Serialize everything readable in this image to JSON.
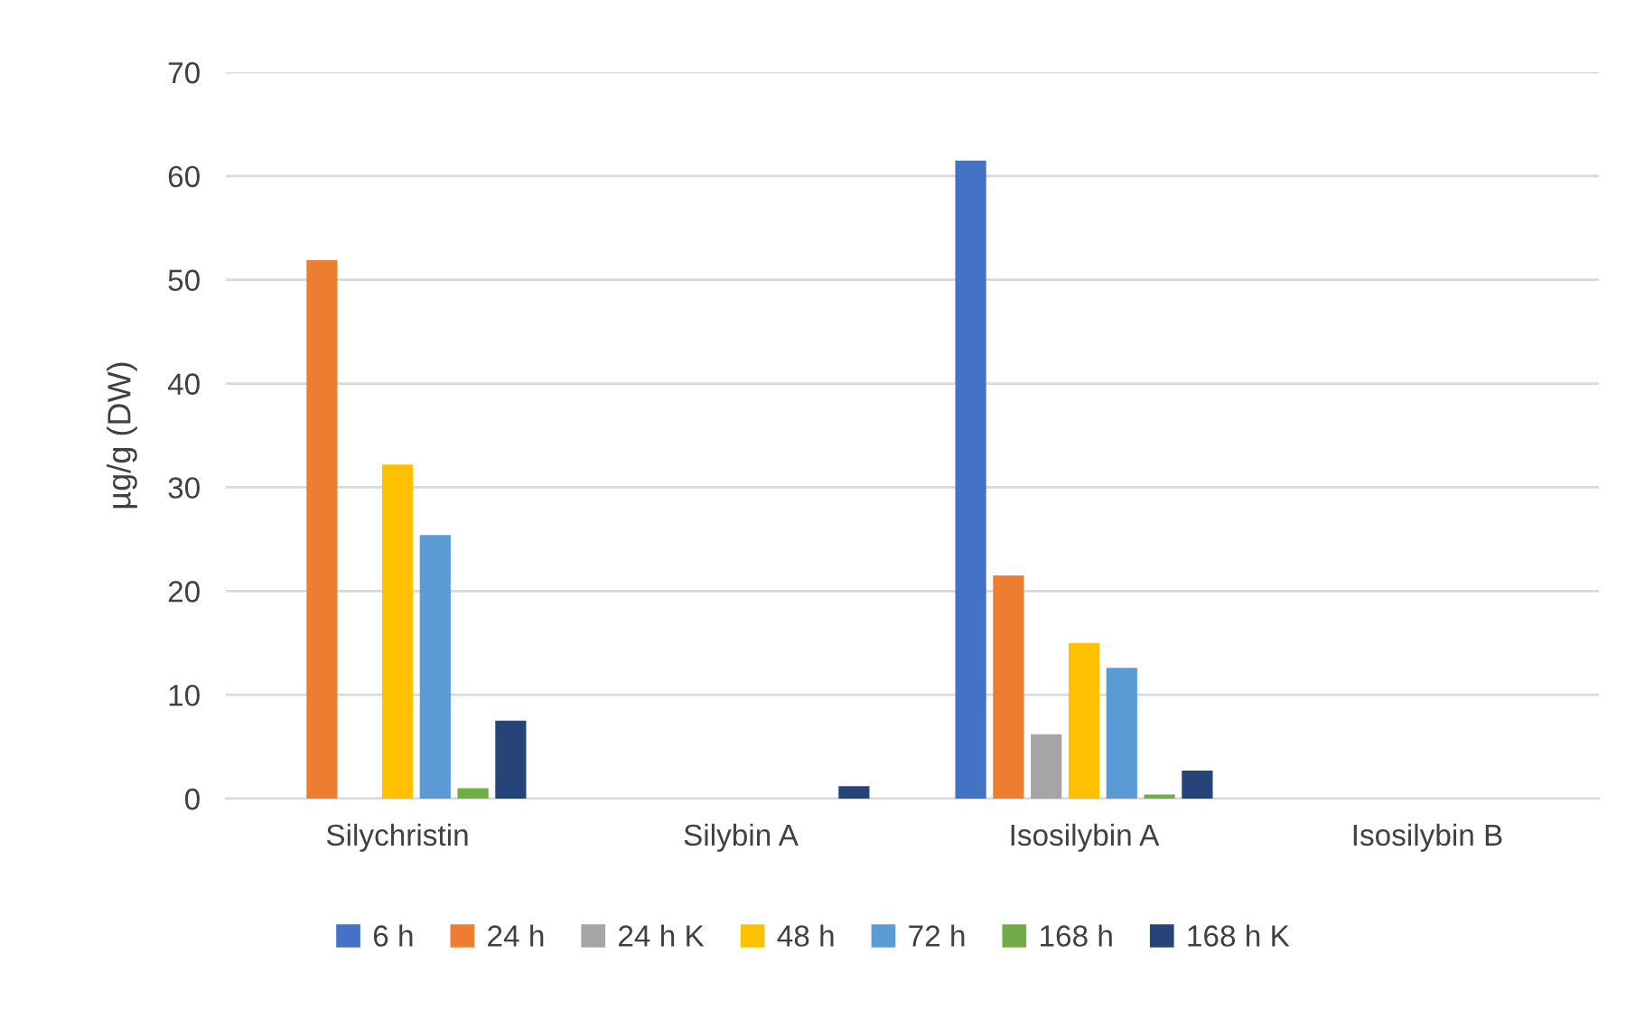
{
  "chart_data": {
    "type": "bar",
    "ylabel": "µg/g (DW)",
    "categories": [
      "Silychristin",
      "Silybin A",
      "Isosilybin A",
      "Isosilybin B"
    ],
    "series": [
      {
        "name": "6 h",
        "color": "#4472c4",
        "values": [
          0,
          0,
          61.5,
          0
        ]
      },
      {
        "name": "24 h",
        "color": "#ed7d31",
        "values": [
          51.9,
          0,
          21.5,
          0
        ]
      },
      {
        "name": "24 h K",
        "color": "#a5a5a5",
        "values": [
          0,
          0,
          6.2,
          0
        ]
      },
      {
        "name": "48 h",
        "color": "#ffc000",
        "values": [
          32.2,
          0,
          15.0,
          0
        ]
      },
      {
        "name": "72 h",
        "color": "#5b9bd5",
        "values": [
          25.4,
          0,
          12.6,
          0
        ]
      },
      {
        "name": "168 h",
        "color": "#70ad47",
        "values": [
          1.0,
          0,
          0.4,
          0
        ]
      },
      {
        "name": "168 h K",
        "color": "#264478",
        "values": [
          7.5,
          1.2,
          2.7,
          0
        ]
      }
    ],
    "ylim": [
      0,
      70
    ],
    "yticks": [
      0,
      10,
      20,
      30,
      40,
      50,
      60,
      70
    ],
    "grid": "y",
    "legend": "bottom"
  }
}
